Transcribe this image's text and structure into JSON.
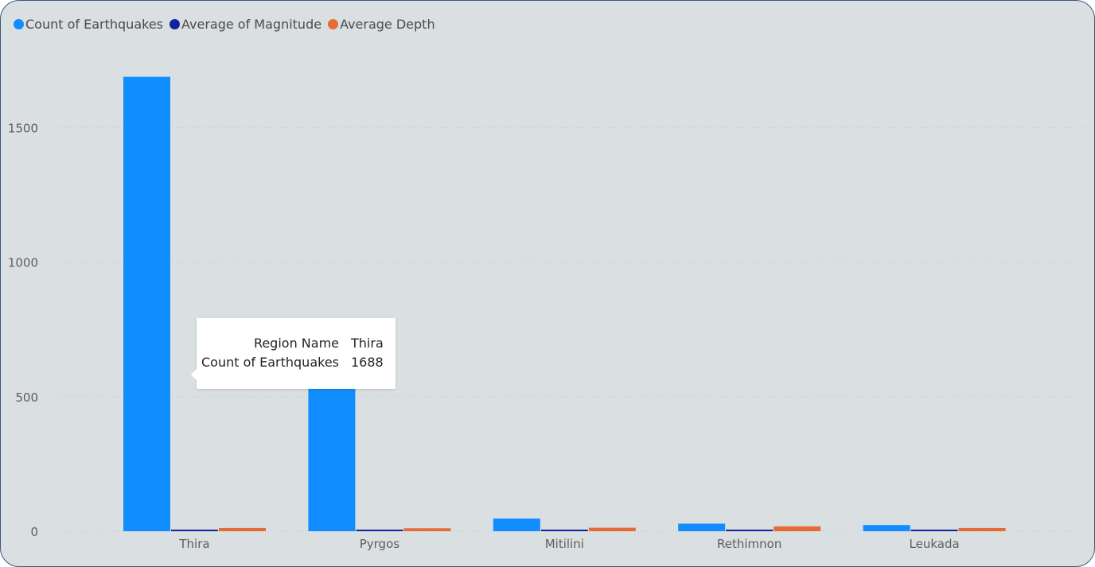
{
  "legend": {
    "items": [
      {
        "label": "Count of Earthquakes",
        "color": "#118dff"
      },
      {
        "label": "Average of Magnitude",
        "color": "#12239e"
      },
      {
        "label": "Average Depth",
        "color": "#e66c37"
      }
    ]
  },
  "chart_data": {
    "type": "bar",
    "categories": [
      "Thira",
      "Pyrgos",
      "Mitilini",
      "Rethimnon",
      "Leukada"
    ],
    "series": [
      {
        "name": "Count of Earthquakes",
        "color": "#118dff",
        "values": [
          1688,
          545,
          47,
          28,
          23
        ]
      },
      {
        "name": "Average of Magnitude",
        "color": "#12239e",
        "values": [
          2.3,
          2.3,
          2.4,
          2.5,
          2.4
        ]
      },
      {
        "name": "Average Depth",
        "color": "#e66c37",
        "values": [
          12,
          11,
          13,
          18,
          12
        ]
      }
    ],
    "yticks": [
      0,
      500,
      1000,
      1500
    ],
    "ylim": [
      0,
      1860
    ],
    "grid": true,
    "legend_position": "top-left"
  },
  "tooltip": {
    "rows": [
      {
        "label": "Region Name",
        "value": "Thira"
      },
      {
        "label": "Count of Earthquakes",
        "value": "1688"
      }
    ]
  }
}
